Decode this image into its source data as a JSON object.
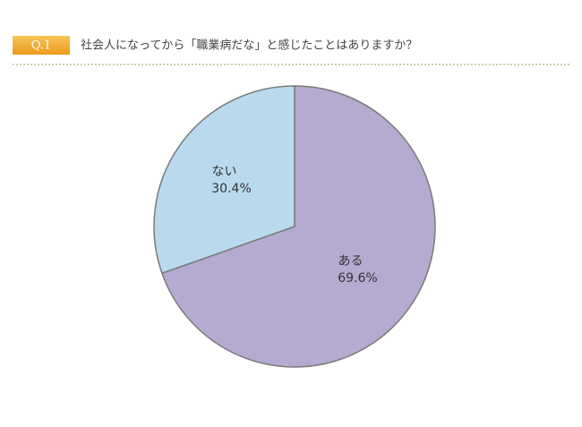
{
  "chart_data": {
    "type": "pie",
    "question_number": "Q.1",
    "title": "社会人になってから「職業病だな」と感じたことはありますか？",
    "categories": [
      "ある",
      "ない"
    ],
    "values": [
      69.6,
      30.4
    ],
    "value_labels": [
      "69.6%",
      "30.4%"
    ],
    "colors": [
      "#b5abd0",
      "#b9daed"
    ],
    "start_angle": "top",
    "direction": "clockwise"
  }
}
